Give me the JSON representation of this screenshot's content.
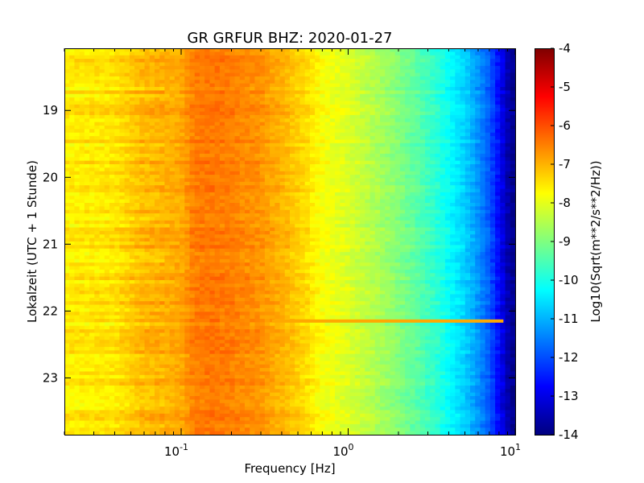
{
  "chart_data": {
    "type": "heatmap",
    "title": "GR GRFUR BHZ: 2020-01-27",
    "xlabel": "Frequency [Hz]",
    "ylabel": "Lokalzeit (UTC + 1 Stunde)",
    "colorbar_label": "Log10(Sqrt(m**2/s**2/Hz))",
    "x_scale": "log",
    "xlim": [
      0.02,
      10
    ],
    "ylim": [
      23.85,
      18.07
    ],
    "y_inverted": true,
    "x_ticks": [
      {
        "value": 0.1,
        "base": "10",
        "exp": "-1"
      },
      {
        "value": 1,
        "base": "10",
        "exp": "0"
      },
      {
        "value": 10,
        "base": "10",
        "exp": "1"
      }
    ],
    "y_ticks": [
      "19",
      "20",
      "21",
      "22",
      "23"
    ],
    "colorbar_range": [
      -14,
      -4
    ],
    "colorbar_ticks": [
      "-4",
      "-5",
      "-6",
      "-7",
      "-8",
      "-9",
      "-10",
      "-11",
      "-12",
      "-13",
      "-14"
    ],
    "colormap": "jet",
    "frequency_profile": {
      "freq": [
        0.02,
        0.04,
        0.058,
        0.1,
        0.118,
        0.15,
        0.2,
        0.3,
        0.4,
        0.55,
        0.7,
        1.0,
        1.3,
        1.8,
        2.5,
        3.5,
        5.0,
        6.0,
        7.0,
        8.0,
        9.0,
        10.0
      ],
      "value": [
        -7.6,
        -7.5,
        -7.1,
        -6.9,
        -6.5,
        -6.4,
        -6.5,
        -6.7,
        -7.0,
        -7.4,
        -7.8,
        -8.1,
        -8.4,
        -8.8,
        -9.3,
        -9.9,
        -10.7,
        -11.3,
        -11.9,
        -12.7,
        -13.5,
        -14.0
      ]
    },
    "spectral_line": {
      "time": 22.15,
      "freq_range": [
        0.35,
        8.5
      ],
      "value": -6.9
    },
    "colors": {
      "background": "#ffffff",
      "axes": "#000000"
    }
  }
}
